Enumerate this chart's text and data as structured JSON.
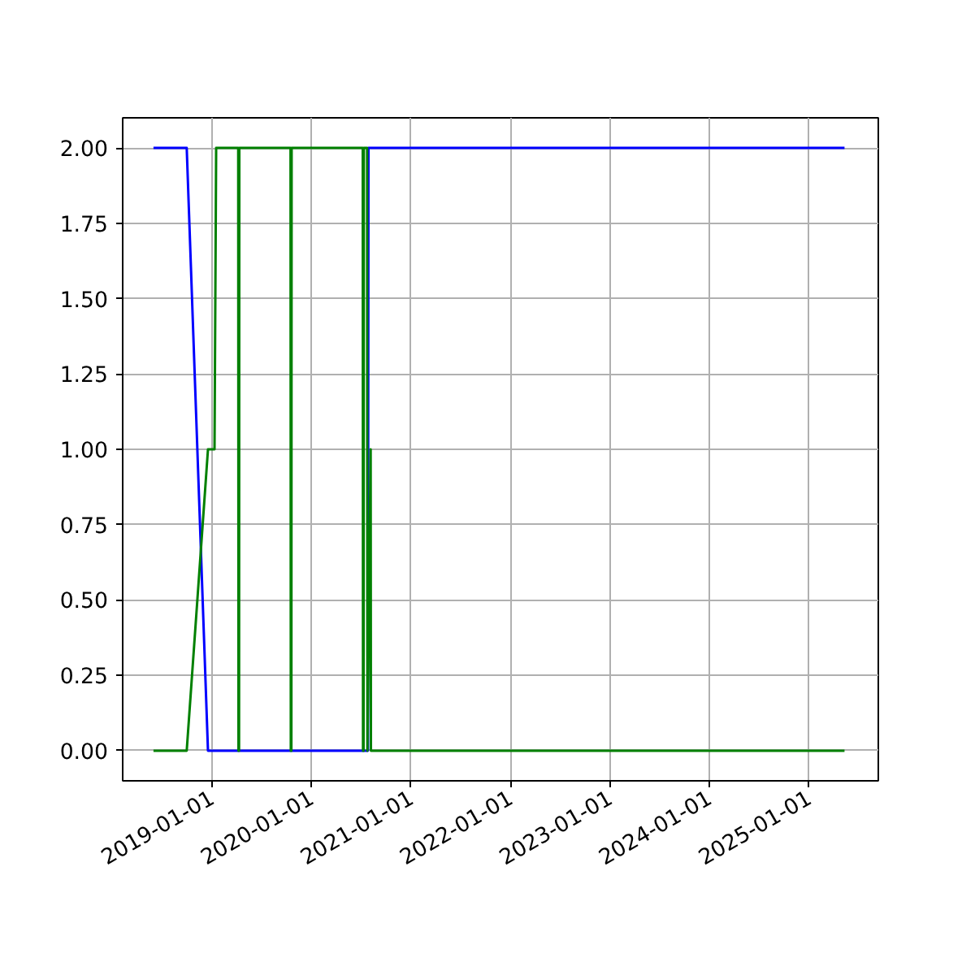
{
  "chart_data": {
    "type": "line",
    "series": [
      {
        "color": "#0000ff",
        "x": [
          "2018-06-01",
          "2018-10-01",
          "2018-12-18",
          "2020-07-27",
          "2020-07-29",
          "2020-08-05",
          "2020-08-06",
          "2025-05-11"
        ],
        "values": [
          2,
          2,
          0,
          0,
          2,
          2,
          2,
          2
        ]
      },
      {
        "color": "#008000",
        "x": [
          "2018-06-01",
          "2018-10-01",
          "2018-12-18",
          "2019-01-11",
          "2019-01-17",
          "2019-04-08",
          "2019-04-09",
          "2019-04-11",
          "2019-04-12",
          "2019-10-17",
          "2019-10-18",
          "2019-10-20",
          "2019-10-21",
          "2020-07-08",
          "2020-07-09",
          "2020-07-11",
          "2020-07-12",
          "2020-07-24",
          "2020-07-25",
          "2020-08-06",
          "2020-08-07",
          "2025-05-11"
        ],
        "values": [
          0,
          0,
          1,
          1,
          2,
          2,
          0,
          0,
          2,
          2,
          0,
          0,
          2,
          2,
          0,
          0,
          2,
          2,
          0,
          1,
          0,
          0
        ]
      }
    ],
    "xlim": [
      "2018-02-08",
      "2025-09-12"
    ],
    "ylim": [
      -0.1,
      2.1
    ],
    "xticks": [
      "2019-01-01",
      "2020-01-01",
      "2021-01-01",
      "2022-01-01",
      "2023-01-01",
      "2024-01-01",
      "2025-01-01"
    ],
    "yticks": [
      {
        "value": 0,
        "label": "0.00"
      },
      {
        "value": 0.25,
        "label": "0.25"
      },
      {
        "value": 0.5,
        "label": "0.50"
      },
      {
        "value": 0.75,
        "label": "0.75"
      },
      {
        "value": 1,
        "label": "1.00"
      },
      {
        "value": 1.25,
        "label": "1.25"
      },
      {
        "value": 1.5,
        "label": "1.50"
      },
      {
        "value": 1.75,
        "label": "1.75"
      },
      {
        "value": 2,
        "label": "2.00"
      }
    ],
    "grid": true,
    "line_style": "solid",
    "marker": "none"
  }
}
